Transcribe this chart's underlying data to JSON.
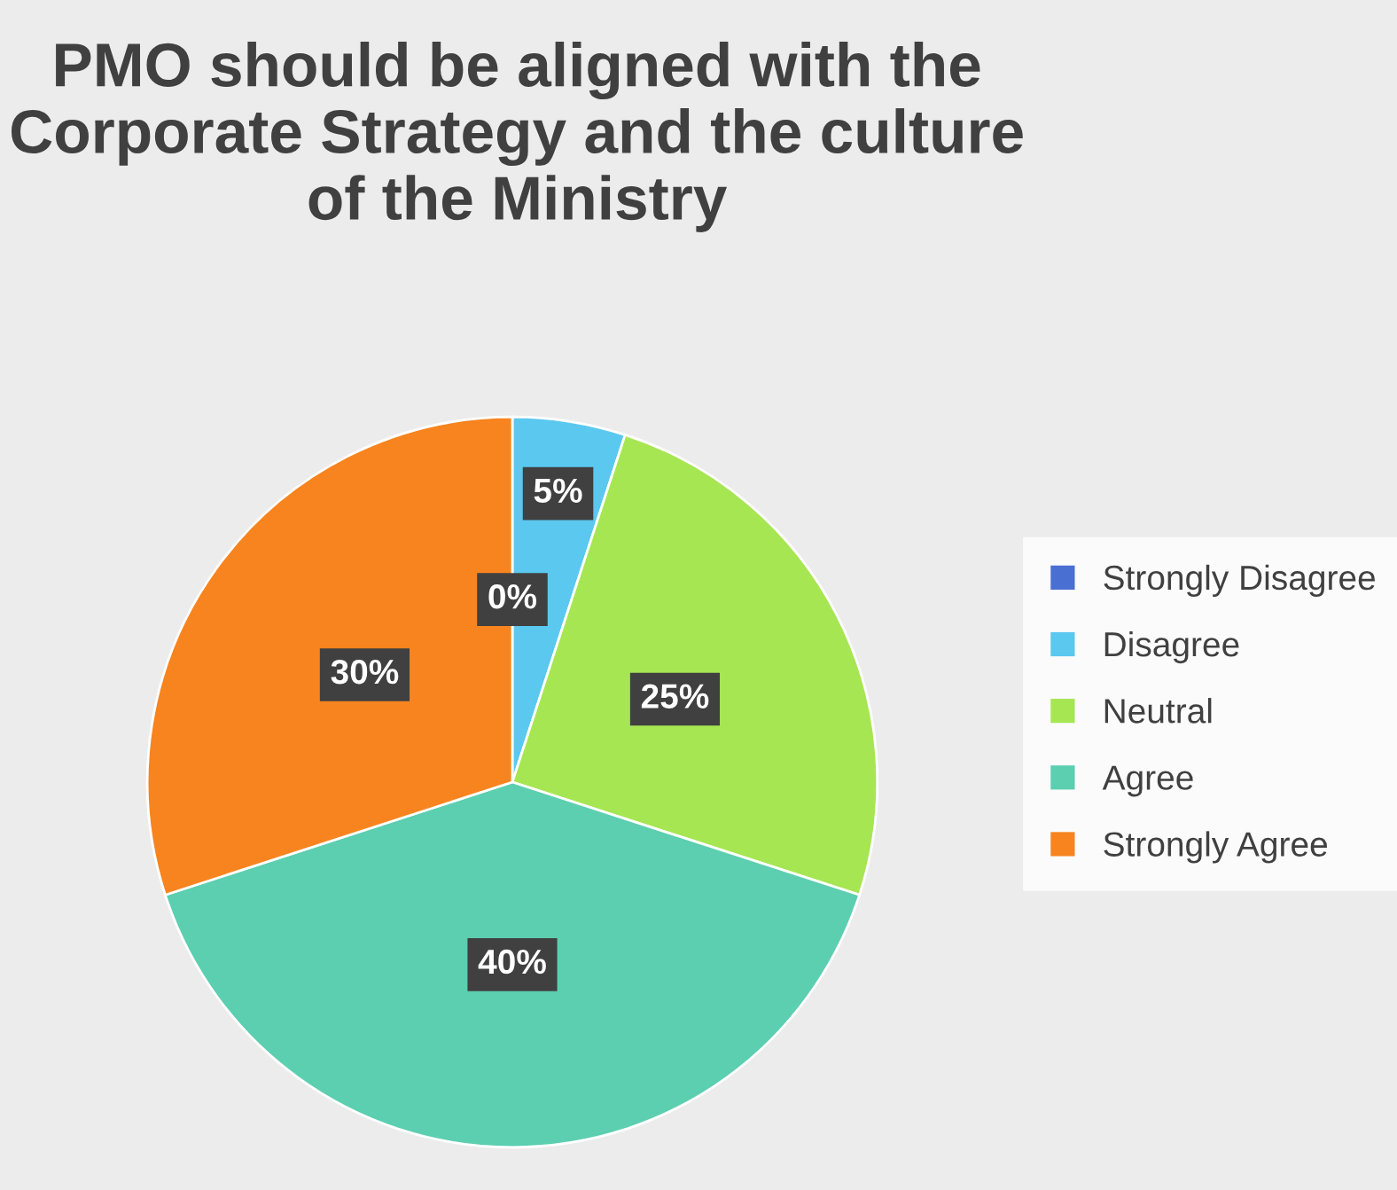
{
  "chart_data": {
    "type": "pie",
    "title": "PMO should be aligned with the Corporate Strategy and the culture of the Ministry",
    "categories": [
      "Strongly Disagree",
      "Disagree",
      "Neutral",
      "Agree",
      "Strongly Agree"
    ],
    "values": [
      0,
      5,
      25,
      40,
      30
    ],
    "colors": [
      "#4a6fd3",
      "#5bc8f0",
      "#a6e653",
      "#5bcfb0",
      "#f7841f"
    ],
    "value_labels": [
      "0%",
      "5%",
      "25%",
      "40%",
      "30%"
    ],
    "legend": "right"
  }
}
